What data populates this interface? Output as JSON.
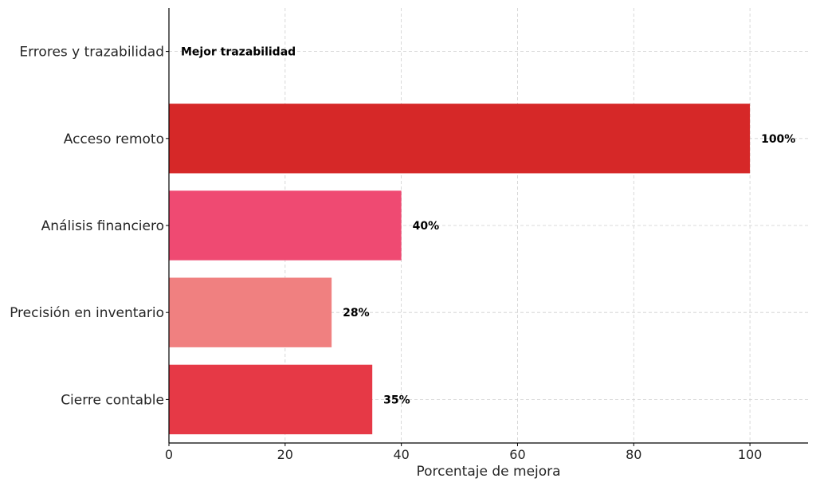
{
  "chart_data": {
    "type": "bar",
    "orientation": "horizontal",
    "title": "",
    "xlabel": "Porcentaje de mejora",
    "ylabel": "",
    "xlim": [
      0,
      110
    ],
    "xticks": [
      0,
      20,
      40,
      60,
      80,
      100
    ],
    "grid": true,
    "categories": [
      "Cierre contable",
      "Precisión en inventario",
      "Análisis financiero",
      "Acceso remoto",
      "Errores y trazabilidad"
    ],
    "values": [
      35,
      28,
      40,
      100,
      0
    ],
    "data_labels": [
      "35%",
      "28%",
      "40%",
      "100%",
      "Mejor trazabilidad"
    ],
    "colors": [
      "#e63946",
      "#f08080",
      "#ef4a72",
      "#d62828",
      "#d62828"
    ]
  }
}
